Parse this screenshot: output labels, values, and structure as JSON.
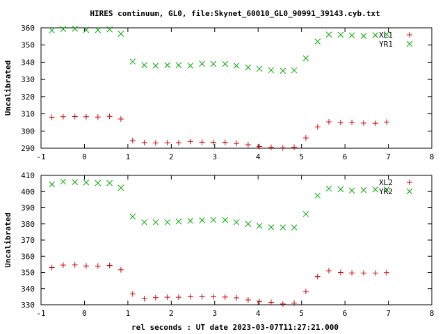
{
  "title": "HIRES continuum, GL0, file:Skynet_60010_GL0_90991_39143.cyb.txt",
  "xlabel": "rel seconds : UT date 2023-03-07T11:27:21.000",
  "colors": {
    "red": "#cc0000",
    "green": "#00aa00",
    "axis": "#000000"
  },
  "chart_data": [
    {
      "type": "scatter",
      "title": "HIRES continuum, GL0, file:Skynet_60010_GL0_90991_39143.cyb.txt",
      "xlabel": "",
      "ylabel": "Uncalibrated",
      "xlim": [
        -1,
        8
      ],
      "ylim": [
        290,
        360
      ],
      "xticks": [
        -1,
        0,
        1,
        2,
        3,
        4,
        5,
        6,
        7,
        8
      ],
      "yticks": [
        290,
        300,
        310,
        320,
        330,
        340,
        350,
        360
      ],
      "legend": "top-right",
      "grid": false,
      "x": [
        -0.75,
        -0.49,
        -0.22,
        0.04,
        0.31,
        0.58,
        0.84,
        1.11,
        1.38,
        1.64,
        1.91,
        2.17,
        2.44,
        2.71,
        2.97,
        3.24,
        3.5,
        3.77,
        4.03,
        4.3,
        4.57,
        4.83,
        5.1,
        5.37,
        5.63,
        5.9,
        6.16,
        6.43,
        6.7,
        6.96
      ],
      "series": [
        {
          "name": "XL1",
          "marker": "+",
          "color": "#cc0000",
          "values": [
            308,
            308.3,
            308.4,
            308.3,
            308.1,
            308.5,
            307,
            294.5,
            293.3,
            293.1,
            293.2,
            293.2,
            293.9,
            293.5,
            293.4,
            293.4,
            292.8,
            292,
            291,
            290.5,
            290.2,
            290.6,
            296,
            302.4,
            305.3,
            304.9,
            305,
            304.6,
            304.5,
            305.2
          ]
        },
        {
          "name": "YR1",
          "marker": "x",
          "color": "#00aa00",
          "values": [
            358.5,
            359.3,
            359.5,
            358.8,
            358.7,
            359.1,
            356.5,
            340.4,
            338.3,
            338,
            338.3,
            338.3,
            338,
            339.1,
            339,
            339,
            338,
            337,
            336.2,
            335.4,
            335,
            335.3,
            342.3,
            352,
            356.1,
            356,
            355.6,
            355.3,
            355.7,
            356.2
          ]
        }
      ]
    },
    {
      "type": "scatter",
      "title": "",
      "xlabel": "rel seconds : UT date 2023-03-07T11:27:21.000",
      "ylabel": "Uncalibrated",
      "xlim": [
        -1,
        8
      ],
      "ylim": [
        330,
        410
      ],
      "xticks": [
        -1,
        0,
        1,
        2,
        3,
        4,
        5,
        6,
        7,
        8
      ],
      "yticks": [
        330,
        340,
        350,
        360,
        370,
        380,
        390,
        400,
        410
      ],
      "legend": "top-right",
      "grid": false,
      "x": [
        -0.75,
        -0.49,
        -0.22,
        0.04,
        0.31,
        0.58,
        0.84,
        1.11,
        1.38,
        1.64,
        1.91,
        2.17,
        2.44,
        2.71,
        2.97,
        3.24,
        3.5,
        3.77,
        4.03,
        4.3,
        4.57,
        4.83,
        5.1,
        5.37,
        5.63,
        5.9,
        6.16,
        6.43,
        6.7,
        6.96
      ],
      "series": [
        {
          "name": "XL2",
          "marker": "+",
          "color": "#cc0000",
          "values": [
            353,
            354.5,
            354.6,
            354,
            353.9,
            354.3,
            351.6,
            336.7,
            333.8,
            334.4,
            334.7,
            334.7,
            335,
            335,
            335,
            334.8,
            334.3,
            333,
            332,
            331.5,
            330.5,
            331,
            338.2,
            347.4,
            351,
            350,
            349.7,
            349.6,
            349.6,
            349.9
          ]
        },
        {
          "name": "YR2",
          "marker": "x",
          "color": "#00aa00",
          "values": [
            404.4,
            406.1,
            405.8,
            405.6,
            405.2,
            405.2,
            402.3,
            384.5,
            381,
            381,
            381,
            381.5,
            381.9,
            382.2,
            382.5,
            382.3,
            381,
            380,
            378.8,
            377.9,
            377.8,
            377.8,
            386.1,
            397.5,
            401.8,
            401.4,
            400.6,
            400.9,
            401.3,
            401.3
          ]
        }
      ]
    }
  ]
}
